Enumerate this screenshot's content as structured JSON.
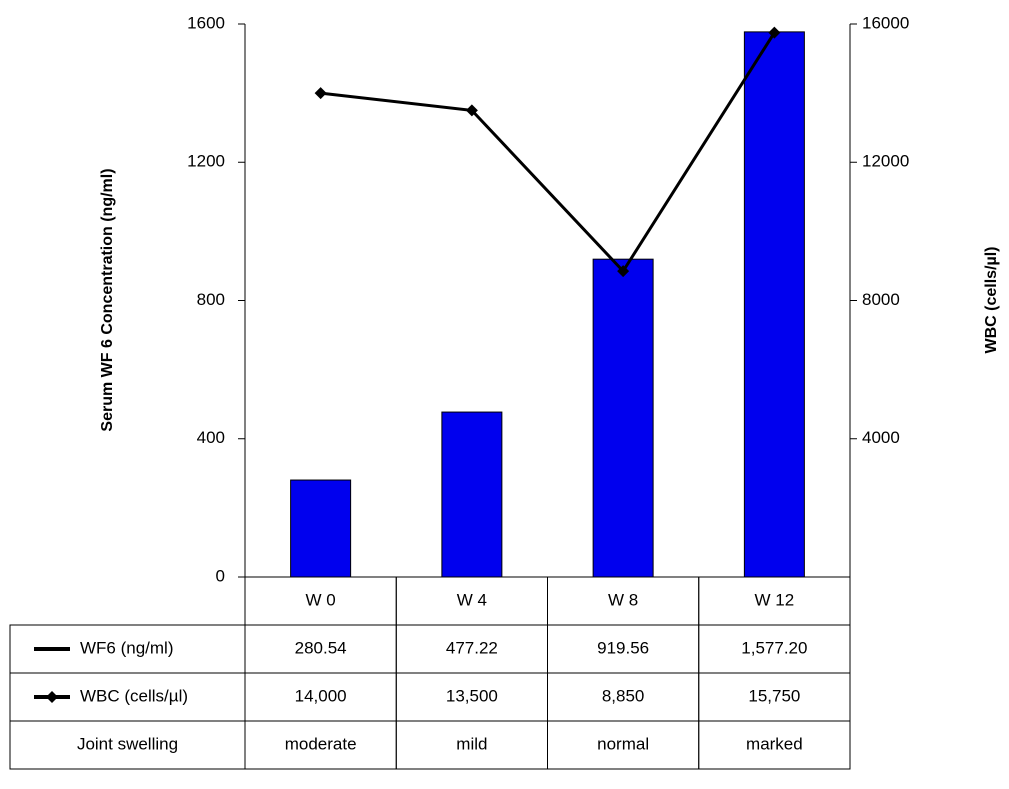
{
  "chart_data": {
    "type": "bar",
    "y_label": "Serum WF 6 Concentration  (ng/ml)",
    "y2_label": "WBC (cells/µl)",
    "categories": [
      "W 0",
      "W 4",
      "W 8",
      "W 12"
    ],
    "ylim": [
      0,
      1600
    ],
    "yticks": [
      0,
      400,
      800,
      1200,
      1600
    ],
    "y2lim": [
      0,
      16000
    ],
    "y2ticks": [
      4000,
      8000,
      12000,
      16000
    ],
    "series": [
      {
        "name": "WF6 (ng/ml)",
        "type": "bar",
        "color": "#0000ee",
        "values": [
          280.54,
          477.22,
          919.56,
          1577.2
        ],
        "value_labels": [
          "280.54",
          "477.22",
          "919.56",
          "1,577.20"
        ]
      },
      {
        "name": "WBC (cells/µl)",
        "type": "line",
        "axis": "y2",
        "color": "#000000",
        "values": [
          14000,
          13500,
          8850,
          15750
        ],
        "value_labels": [
          "14,000",
          "13,500",
          "8,850",
          "15,750"
        ]
      }
    ],
    "extra_row": {
      "label": "Joint swelling",
      "values": [
        "moderate",
        "mild",
        "normal",
        "marked"
      ]
    }
  }
}
